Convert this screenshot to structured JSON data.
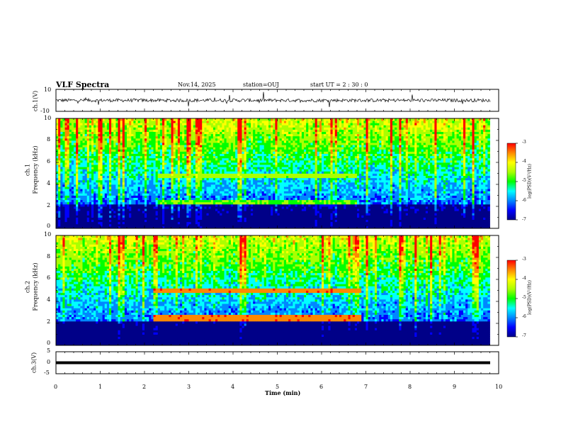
{
  "header": {
    "title": "VLF Spectra",
    "date": "Nov.14, 2025",
    "station": "station=OUJ",
    "start_ut": "start  UT =  2 : 30 : 0"
  },
  "colors": {
    "scale": [
      "#000088",
      "#0000ff",
      "#0088ff",
      "#00ffff",
      "#00ff00",
      "#aaff00",
      "#ffff00",
      "#ff8800",
      "#ff0000",
      "#ffaaaa",
      "#ffffff"
    ],
    "trace": "#000000"
  },
  "chart_data": [
    {
      "type": "line",
      "panel": "ch1-waveform",
      "ylabel": "ch.1(V)",
      "ylim": [
        -10,
        10
      ],
      "yticks": [
        "10",
        "-10"
      ],
      "baseline": 0,
      "noise_amplitude": 1.5
    },
    {
      "type": "heatmap",
      "panel": "ch1-spectrogram",
      "ylabel": "ch.1\nFrequency (kHz)",
      "ylabel_line1": "ch.1",
      "ylabel_line2": "Frequency (kHz)",
      "xlim": [
        0,
        10
      ],
      "ylim": [
        0,
        10
      ],
      "yticks": [
        "0",
        "2",
        "4",
        "6",
        "8",
        "10"
      ],
      "data_end_min": 9.8,
      "colorbar": {
        "label": "log(PSD)(V²/Hz)",
        "range": [
          -7,
          -3
        ],
        "ticks": [
          "-3",
          "-4",
          "-5",
          "-6",
          "-7"
        ]
      },
      "bands": [
        {
          "t_start": 2.3,
          "t_end": 6.8,
          "f_low": 4.6,
          "f_high": 5.0,
          "level": -4.6
        },
        {
          "t_start": 2.3,
          "t_end": 6.8,
          "f_low": 2.2,
          "f_high": 2.6,
          "level": -4.8
        }
      ]
    },
    {
      "type": "heatmap",
      "panel": "ch2-spectrogram",
      "ylabel": "ch.2\nFrequency (kHz)",
      "ylabel_line1": "ch.2",
      "ylabel_line2": "Frequency (kHz)",
      "xlim": [
        0,
        10
      ],
      "ylim": [
        0,
        10
      ],
      "yticks": [
        "0",
        "2",
        "4",
        "6",
        "8",
        "10"
      ],
      "data_end_min": 9.8,
      "colorbar": {
        "label": "log(PSD)(V²/Hz)",
        "range": [
          -7,
          -3
        ],
        "ticks": [
          "-3",
          "-4",
          "-5",
          "-6",
          "-7"
        ]
      },
      "bands": [
        {
          "t_start": 2.2,
          "t_end": 6.9,
          "f_low": 4.7,
          "f_high": 5.2,
          "level": -3.6
        },
        {
          "t_start": 2.2,
          "t_end": 6.9,
          "f_low": 2.2,
          "f_high": 2.7,
          "level": -3.6
        }
      ]
    },
    {
      "type": "line",
      "panel": "ch3-waveform",
      "ylabel": "ch.3(V)",
      "ylim": [
        -5,
        5
      ],
      "yticks": [
        "5",
        "0",
        "-5"
      ],
      "value": 0
    }
  ],
  "xaxis": {
    "label": "Time  (min)",
    "ticks": [
      "0",
      "1",
      "2",
      "3",
      "4",
      "5",
      "6",
      "7",
      "8",
      "9",
      "10"
    ],
    "range": [
      0,
      10
    ]
  }
}
